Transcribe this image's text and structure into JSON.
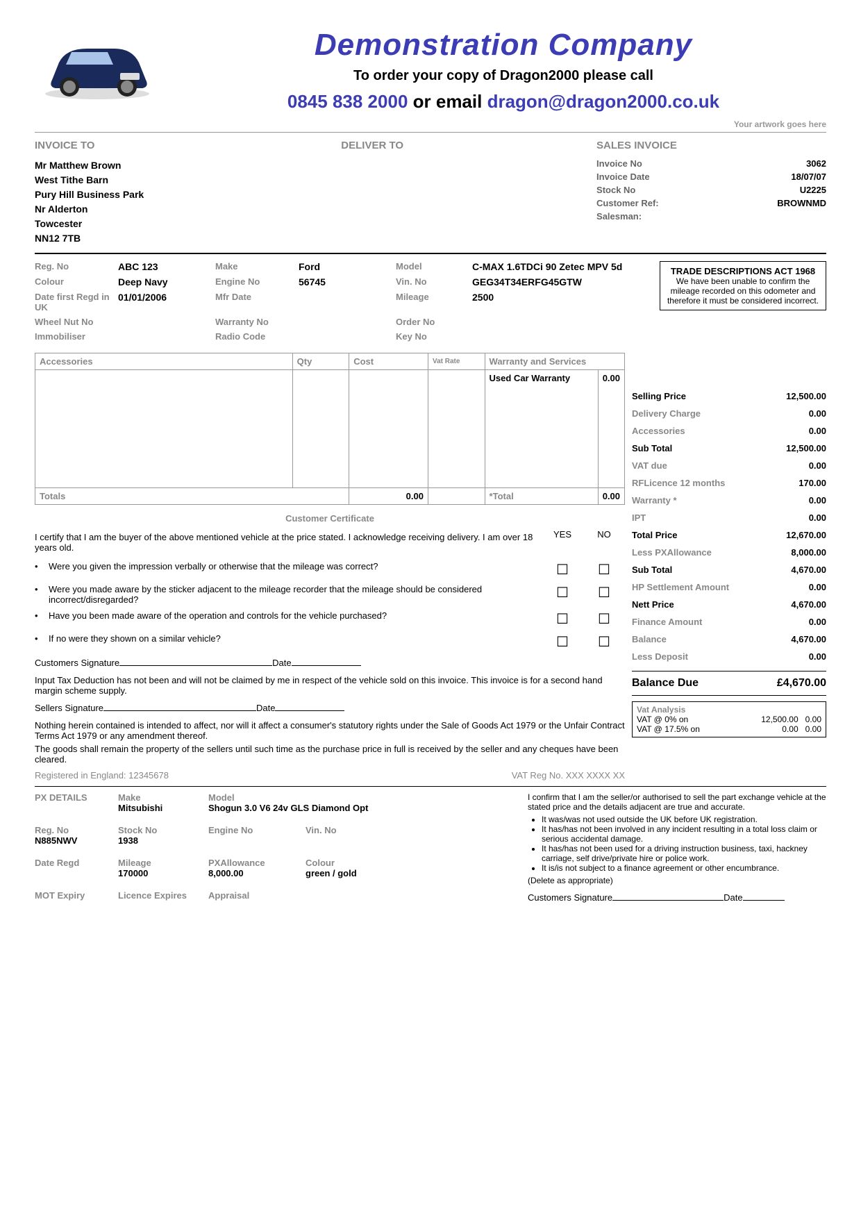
{
  "header": {
    "company_name": "Demonstration Company",
    "order_line": "To order your copy of Dragon2000 please call",
    "phone": "0845 838 2000",
    "or_email": " or email ",
    "email": "dragon@dragon2000.co.uk",
    "artwork_note": "Your artwork goes here"
  },
  "invoice_to": {
    "title": "INVOICE TO",
    "lines": [
      "Mr Matthew Brown",
      "West Tithe Barn",
      "Pury Hill Business Park",
      "Nr Alderton",
      "Towcester",
      "NN12 7TB"
    ]
  },
  "deliver_to": {
    "title": "DELIVER TO"
  },
  "sales_invoice": {
    "title": "SALES INVOICE",
    "rows": [
      {
        "label": "Invoice No",
        "value": "3062"
      },
      {
        "label": "Invoice Date",
        "value": "18/07/07"
      },
      {
        "label": "Stock No",
        "value": "U2225"
      },
      {
        "label": "Customer Ref:",
        "value": "BROWNMD"
      },
      {
        "label": "Salesman:",
        "value": ""
      }
    ]
  },
  "vehicle": {
    "rows": [
      {
        "l1": "Reg. No",
        "v1": "ABC 123",
        "l2": "Make",
        "v2": "Ford",
        "l3": "Model",
        "v3": "C-MAX 1.6TDCi 90 Zetec MPV 5d"
      },
      {
        "l1": "Colour",
        "v1": "Deep Navy",
        "l2": "Engine No",
        "v2": "56745",
        "l3": "Vin. No",
        "v3": "GEG34T34ERFG45GTW"
      },
      {
        "l1": "Date first Regd in UK",
        "v1": "01/01/2006",
        "l2": "Mfr Date",
        "v2": "",
        "l3": "Mileage",
        "v3": "2500"
      },
      {
        "l1": "Wheel Nut No",
        "v1": "",
        "l2": "Warranty No",
        "v2": "",
        "l3": "Order No",
        "v3": ""
      },
      {
        "l1": "Immobiliser",
        "v1": "",
        "l2": "Radio Code",
        "v2": "",
        "l3": "Key No",
        "v3": ""
      }
    ]
  },
  "trade_box": {
    "title": "TRADE DESCRIPTIONS ACT 1968",
    "text": "We have been unable to confirm the mileage recorded on this odometer and therefore it must be considered incorrect."
  },
  "acc_headers": [
    "Accessories",
    "Qty",
    "Cost",
    "Vat Rate"
  ],
  "warr_headers": [
    "Warranty and Services"
  ],
  "warr_row": {
    "label": "Used Car Warranty",
    "value": "0.00"
  },
  "totals_label": "Totals",
  "acc_total": "0.00",
  "warr_total_label": "*Total",
  "warr_total": "0.00",
  "cert": {
    "title": "Customer Certificate",
    "intro": "I certify that I am the buyer of the above mentioned vehicle at the price stated. I acknowledge receiving delivery. I am over 18 years old.",
    "yes": "YES",
    "no": "NO",
    "questions": [
      "Were you given the impression verbally or otherwise that the mileage was correct?",
      "Were you made aware by the sticker adjacent to the mileage recorder that the mileage should be considered incorrect/disregarded?",
      "Have you been made aware of the operation and controls for the vehicle purchased?",
      "If no were they shown on a similar vehicle?"
    ],
    "cust_sig": "Customers Signature",
    "date": "Date",
    "tax_p": "Input Tax Deduction has not been and will not be claimed by me in respect of the vehicle sold on this invoice. This invoice is for a second hand margin scheme supply.",
    "sell_sig": "Sellers Signature",
    "p3": "Nothing herein contained is intended to affect, nor will it affect a consumer's statutory rights under the Sale of Goods Act 1979 or the Unfair Contract Terms Act 1979 or any amendment thereof.",
    "p4": "The goods shall remain the property of the sellers until such time as the purchase price in full is received by the seller and any cheques have been cleared."
  },
  "reg_line": {
    "left": "Registered in England: 12345678",
    "right": "VAT Reg No. XXX XXXX XX"
  },
  "fin_rows": [
    {
      "label": "Selling Price",
      "value": "12,500.00",
      "bold": true
    },
    {
      "label": "Delivery Charge",
      "value": "0.00",
      "bold": false
    },
    {
      "label": "Accessories",
      "value": "0.00",
      "bold": false
    },
    {
      "label": "Sub Total",
      "value": "12,500.00",
      "bold": true
    },
    {
      "label": "VAT due",
      "value": "0.00",
      "bold": false
    },
    {
      "label": "RFLicence   12 months",
      "value": "170.00",
      "bold": false
    },
    {
      "label": "Warranty *",
      "value": "0.00",
      "bold": false
    },
    {
      "label": "IPT",
      "value": "0.00",
      "bold": false
    },
    {
      "label": "Total Price",
      "value": "12,670.00",
      "bold": true
    },
    {
      "label": "Less PXAllowance",
      "value": "8,000.00",
      "bold": false
    },
    {
      "label": "Sub Total",
      "value": "4,670.00",
      "bold": true
    },
    {
      "label": "HP Settlement Amount",
      "value": "0.00",
      "bold": false
    },
    {
      "label": "Nett Price",
      "value": "4,670.00",
      "bold": true
    },
    {
      "label": "Finance Amount",
      "value": "0.00",
      "bold": false
    },
    {
      "label": "Balance",
      "value": "4,670.00",
      "bold": false
    },
    {
      "label": "Less Deposit",
      "value": "0.00",
      "bold": false
    }
  ],
  "balance_due": {
    "label": "Balance Due",
    "value": "£4,670.00"
  },
  "vat": {
    "title": "Vat Analysis",
    "rows": [
      {
        "label": "VAT @ 0% on",
        "amt": "12,500.00",
        "vat": "0.00"
      },
      {
        "label": "VAT @ 17.5% on",
        "amt": "0.00",
        "vat": "0.00"
      }
    ]
  },
  "px": {
    "title": "PX DETAILS",
    "fields": [
      {
        "l": "Make",
        "v": "Mitsubishi"
      },
      {
        "l": "Model",
        "v": "Shogun 3.0 V6 24v GLS Diamond Opt"
      },
      {
        "l": "Reg. No",
        "v": "N885NWV"
      },
      {
        "l": "Stock No",
        "v": "1938"
      },
      {
        "l": "Engine No",
        "v": ""
      },
      {
        "l": "Vin. No",
        "v": ""
      },
      {
        "l": "Date Regd",
        "v": ""
      },
      {
        "l": "Mileage",
        "v": "170000"
      },
      {
        "l": "PXAllowance",
        "v": "8,000.00"
      },
      {
        "l": "Colour",
        "v": "green / gold"
      },
      {
        "l": "MOT Expiry",
        "v": ""
      },
      {
        "l": "Licence Expires",
        "v": ""
      },
      {
        "l": "Appraisal",
        "v": ""
      }
    ],
    "confirm": "I confirm that I am the seller/or authorised to sell the part exchange vehicle at the stated price and the details adjacent are true and accurate.",
    "bullets": [
      "It was/was not used outside the UK before UK registration.",
      "It has/has not been involved in any incident resulting in a total loss claim or serious accidental damage.",
      "It has/has not been used for a driving instruction business, taxi, hackney carriage, self drive/private hire or police work.",
      "It is/is not subject to a finance agreement or other encumbrance."
    ],
    "delete": "(Delete as appropriate)",
    "sig": "Customers Signature",
    "date": "Date"
  }
}
